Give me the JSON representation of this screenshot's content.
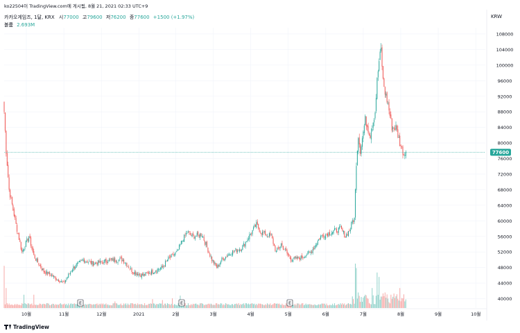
{
  "publisher_line": "ko22504이 TradingView.com에 게시됨, 8월 21, 2021 02:33 UTC+9",
  "symbol_line": {
    "symbol": "카카오게임즈, 1달, KRX",
    "o_label": "시",
    "o_value": "77000",
    "h_label": "고",
    "h_value": "79600",
    "l_label": "저",
    "l_value": "76200",
    "c_label": "종",
    "c_value": "77600",
    "change": "+1500 (+1.97%)"
  },
  "volume_line": {
    "label": "볼륨",
    "value": "2.693M"
  },
  "currency_label": "KRW",
  "brand": "TradingView",
  "colors": {
    "up": "#26a69a",
    "down": "#ef5350",
    "up_vol": "#8fd1c9",
    "down_vol": "#f7a9a7",
    "price_badge": "#26a69a",
    "grid": "#f0f3fa"
  },
  "icons": [
    "tradingview-logo-icon",
    "earnings-marker-icon"
  ],
  "chart_data": {
    "type": "candlestick",
    "y_axis_labels": [
      "108000",
      "104000",
      "100000",
      "96000",
      "92000",
      "88000",
      "84000",
      "80000",
      "76000",
      "72000",
      "68000",
      "64000",
      "60000",
      "56000",
      "52000",
      "48000",
      "44000",
      "40000"
    ],
    "ylim": [
      37600,
      109600
    ],
    "x_labels": [
      "10월",
      "11월",
      "12월",
      "2021",
      "2월",
      "3월",
      "4월",
      "5월",
      "6월",
      "7월",
      "8월",
      "9월",
      "10월"
    ],
    "last_price": "77600",
    "earnings_markers": [
      "E",
      "E",
      "E"
    ],
    "anchors": [
      [
        0,
        88000
      ],
      [
        2,
        78000
      ],
      [
        5,
        68000
      ],
      [
        12,
        59000
      ],
      [
        18,
        52000
      ],
      [
        25,
        56000
      ],
      [
        30,
        51000
      ],
      [
        40,
        47000
      ],
      [
        48,
        46000
      ],
      [
        60,
        44000
      ],
      [
        70,
        48000
      ],
      [
        80,
        50000
      ],
      [
        90,
        49000
      ],
      [
        100,
        49500
      ],
      [
        110,
        50000
      ],
      [
        120,
        50000
      ],
      [
        130,
        47000
      ],
      [
        140,
        46000
      ],
      [
        150,
        47000
      ],
      [
        160,
        48000
      ],
      [
        165,
        50000
      ],
      [
        175,
        52000
      ],
      [
        180,
        55000
      ],
      [
        185,
        57000
      ],
      [
        190,
        56000
      ],
      [
        200,
        56500
      ],
      [
        210,
        50000
      ],
      [
        215,
        48000
      ],
      [
        220,
        50000
      ],
      [
        230,
        52000
      ],
      [
        240,
        53000
      ],
      [
        250,
        57000
      ],
      [
        255,
        59000
      ],
      [
        260,
        57000
      ],
      [
        270,
        56000
      ],
      [
        275,
        52000
      ],
      [
        280,
        54000
      ],
      [
        290,
        50000
      ],
      [
        300,
        50500
      ],
      [
        310,
        52000
      ],
      [
        320,
        56000
      ],
      [
        330,
        57000
      ],
      [
        340,
        58000
      ],
      [
        345,
        56000
      ],
      [
        350,
        58000
      ],
      [
        352,
        60000
      ],
      [
        354,
        60500
      ],
      [
        356,
        75000
      ],
      [
        358,
        82000
      ],
      [
        360,
        78000
      ],
      [
        365,
        86000
      ],
      [
        370,
        82000
      ],
      [
        375,
        88000
      ],
      [
        377,
        96000
      ],
      [
        379,
        101000
      ],
      [
        381,
        104000
      ],
      [
        383,
        96000
      ],
      [
        385,
        93000
      ],
      [
        388,
        90000
      ],
      [
        392,
        84000
      ],
      [
        396,
        84000
      ],
      [
        400,
        80000
      ],
      [
        404,
        77000
      ],
      [
        406,
        77600
      ]
    ],
    "day_range": [
      0,
      406
    ],
    "volume_spikes": [
      [
        0,
        0.95
      ],
      [
        2,
        0.45
      ],
      [
        20,
        0.3
      ],
      [
        30,
        0.3
      ],
      [
        112,
        0.15
      ],
      [
        150,
        0.2
      ],
      [
        160,
        0.18
      ],
      [
        170,
        0.22
      ],
      [
        178,
        0.28
      ],
      [
        355,
        1.0
      ],
      [
        356,
        0.9
      ],
      [
        358,
        0.35
      ],
      [
        365,
        0.3
      ],
      [
        372,
        0.45
      ],
      [
        377,
        0.8
      ],
      [
        379,
        0.7
      ],
      [
        385,
        0.35
      ],
      [
        400,
        0.45
      ],
      [
        405,
        0.15
      ]
    ],
    "volume_base": 0.06
  }
}
